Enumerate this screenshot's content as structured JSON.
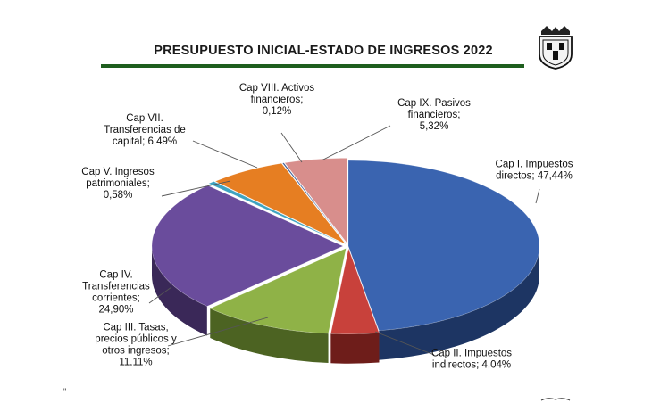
{
  "title": "PRESUPUESTO INICIAL-ESTADO DE INGRESOS 2022",
  "corner_mark": "\"",
  "chart_data": {
    "type": "pie",
    "title": "PRESUPUESTO INICIAL-ESTADO DE INGRESOS 2022",
    "unit": "%",
    "slices": [
      {
        "name": "Cap I. Impuestos directos",
        "value": 47.44,
        "label_lines": [
          "Cap I. Impuestos",
          "directos; 47,44%"
        ],
        "color": "#3a64b0",
        "dark": "#1d3563"
      },
      {
        "name": "Cap II. Impuestos indirectos",
        "value": 4.04,
        "label_lines": [
          "Cap II. Impuestos",
          "indirectos; 4,04%"
        ],
        "color": "#c8413b",
        "dark": "#6e1d1a"
      },
      {
        "name": "Cap III. Tasas, precios públicos y otros ingresos",
        "value": 11.11,
        "label_lines": [
          "Cap III. Tasas,",
          "precios públicos y",
          "otros ingresos;",
          "11,11%"
        ],
        "color": "#8fb247",
        "dark": "#4c6322"
      },
      {
        "name": "Cap IV. Transferencias corrientes",
        "value": 24.9,
        "label_lines": [
          "Cap IV.",
          "Transferencias",
          "corrientes;",
          "24,90%"
        ],
        "color": "#6a4c9c",
        "dark": "#3a2858"
      },
      {
        "name": "Cap V. Ingresos patrimoniales",
        "value": 0.58,
        "label_lines": [
          "Cap V. Ingresos",
          "patrimoniales;",
          "0,58%"
        ],
        "color": "#3ea3c0",
        "dark": "#1c5a6c"
      },
      {
        "name": "Cap VII. Transferencias de capital",
        "value": 6.49,
        "label_lines": [
          "Cap VII.",
          "Transferencias   de",
          "capital; 6,49%"
        ],
        "color": "#e67e22",
        "dark": "#8a4a10"
      },
      {
        "name": "Cap VIII. Activos financieros",
        "value": 0.12,
        "label_lines": [
          "Cap VIII. Activos",
          "financieros;",
          "0,12%"
        ],
        "color": "#2f4f8a",
        "dark": "#18294a"
      },
      {
        "name": "Cap IX. Pasivos financieros",
        "value": 5.32,
        "label_lines": [
          "Cap IX. Pasivos",
          "financieros;",
          "5,32%"
        ],
        "color": "#d88e8c",
        "dark": "#7e4c4a"
      }
    ],
    "legend": "none",
    "style": "3d-exploded"
  }
}
